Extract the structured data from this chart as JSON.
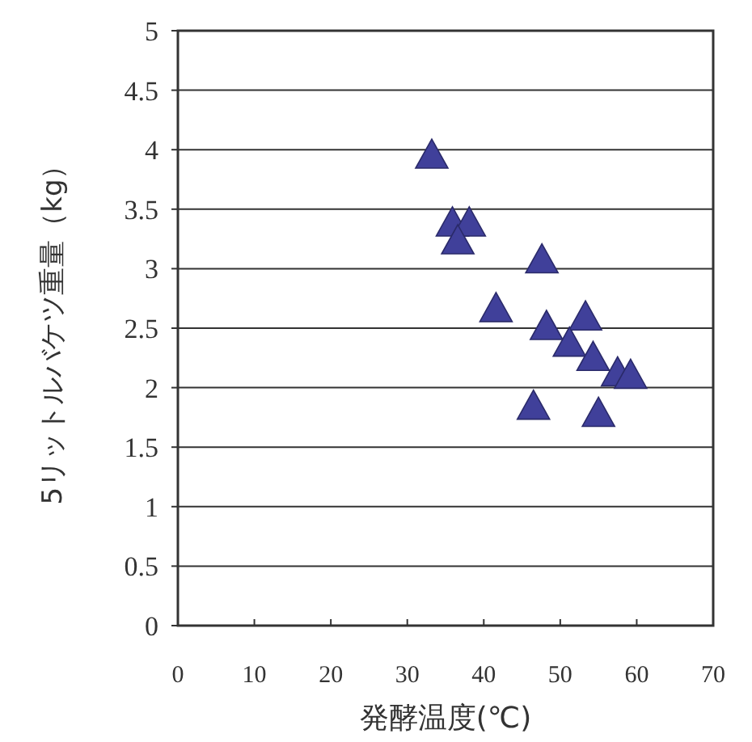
{
  "chart_data": {
    "type": "scatter",
    "xlabel": "発酵温度(℃)",
    "ylabel": "5リットルバケツ重量（kg）",
    "x": [
      33.2,
      35.9,
      38.1,
      36.6,
      47.6,
      41.6,
      48.2,
      53.3,
      51.2,
      54.3,
      57.5,
      59.2,
      46.5,
      55.0
    ],
    "series": [
      {
        "color": "#40409a",
        "values": [
          3.94,
          3.37,
          3.37,
          3.22,
          3.06,
          2.65,
          2.5,
          2.58,
          2.36,
          2.24,
          2.11,
          2.09,
          1.83,
          1.77
        ]
      }
    ],
    "xlim": [
      0,
      70
    ],
    "xticks": [
      0,
      10,
      20,
      30,
      40,
      50,
      60,
      70
    ],
    "ylim": [
      0,
      5
    ],
    "yticks": [
      0,
      0.5,
      1,
      1.5,
      2,
      2.5,
      3,
      3.5,
      4,
      4.5,
      5
    ],
    "grid": "y",
    "marker": "triangle"
  }
}
